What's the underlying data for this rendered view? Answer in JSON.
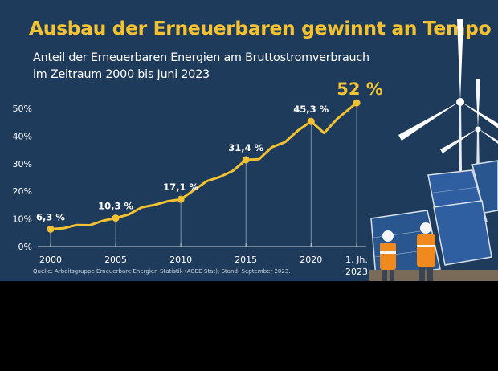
{
  "header": {
    "title": "Ausbau der Erneuerbaren gewinnt an Tempo",
    "subtitle_line1": "Anteil der Erneuerbaren Energien am Bruttostromverbrauch",
    "subtitle_line2": "im Zeitraum 2000 bis Juni 2023"
  },
  "source": "Quelle: Arbeitsgruppe Erneuerbare Energien-Statistik (AGEE-Stat); Stand: September 2023.",
  "colors": {
    "background": "#1f3b5c",
    "accent": "#f2c232",
    "text": "#ffffff",
    "axis": "#c9d3de"
  },
  "chart_data": {
    "type": "line",
    "x": [
      2000,
      2001,
      2002,
      2003,
      2004,
      2005,
      2006,
      2007,
      2008,
      2009,
      2010,
      2011,
      2012,
      2013,
      2014,
      2015,
      2016,
      2017,
      2018,
      2019,
      2020,
      2021,
      2022,
      2023.5
    ],
    "series": [
      {
        "values": [
          6.3,
          6.6,
          7.8,
          7.7,
          9.3,
          10.3,
          11.6,
          14.2,
          15.1,
          16.4,
          17.1,
          20.4,
          23.7,
          25.2,
          27.4,
          31.4,
          31.6,
          36.0,
          37.8,
          42.0,
          45.3,
          41.1,
          46.2,
          52.0
        ]
      }
    ],
    "labeled_points": [
      {
        "x": 2000,
        "y": 6.3,
        "label": "6,3 %"
      },
      {
        "x": 2005,
        "y": 10.3,
        "label": "10,3 %"
      },
      {
        "x": 2010,
        "y": 17.1,
        "label": "17,1 %"
      },
      {
        "x": 2015,
        "y": 31.4,
        "label": "31,4 %"
      },
      {
        "x": 2020,
        "y": 45.3,
        "label": "45,3 %"
      },
      {
        "x": 2023.5,
        "y": 52.0,
        "label": "52 %"
      }
    ],
    "x_ticks": [
      {
        "value": 2000,
        "label": "2000"
      },
      {
        "value": 2005,
        "label": "2005"
      },
      {
        "value": 2010,
        "label": "2010"
      },
      {
        "value": 2015,
        "label": "2015"
      },
      {
        "value": 2020,
        "label": "2020"
      },
      {
        "value": 2023.5,
        "label": "1. Jh.",
        "label2": "2023"
      }
    ],
    "y_ticks": [
      {
        "value": 0,
        "label": "0%"
      },
      {
        "value": 10,
        "label": "10%"
      },
      {
        "value": 20,
        "label": "20%"
      },
      {
        "value": 30,
        "label": "30%"
      },
      {
        "value": 40,
        "label": "40%"
      },
      {
        "value": 50,
        "label": "50%"
      }
    ],
    "ylim": [
      0,
      50
    ],
    "xlim": [
      2000,
      2023.5
    ],
    "grid": false,
    "legend": "none"
  }
}
